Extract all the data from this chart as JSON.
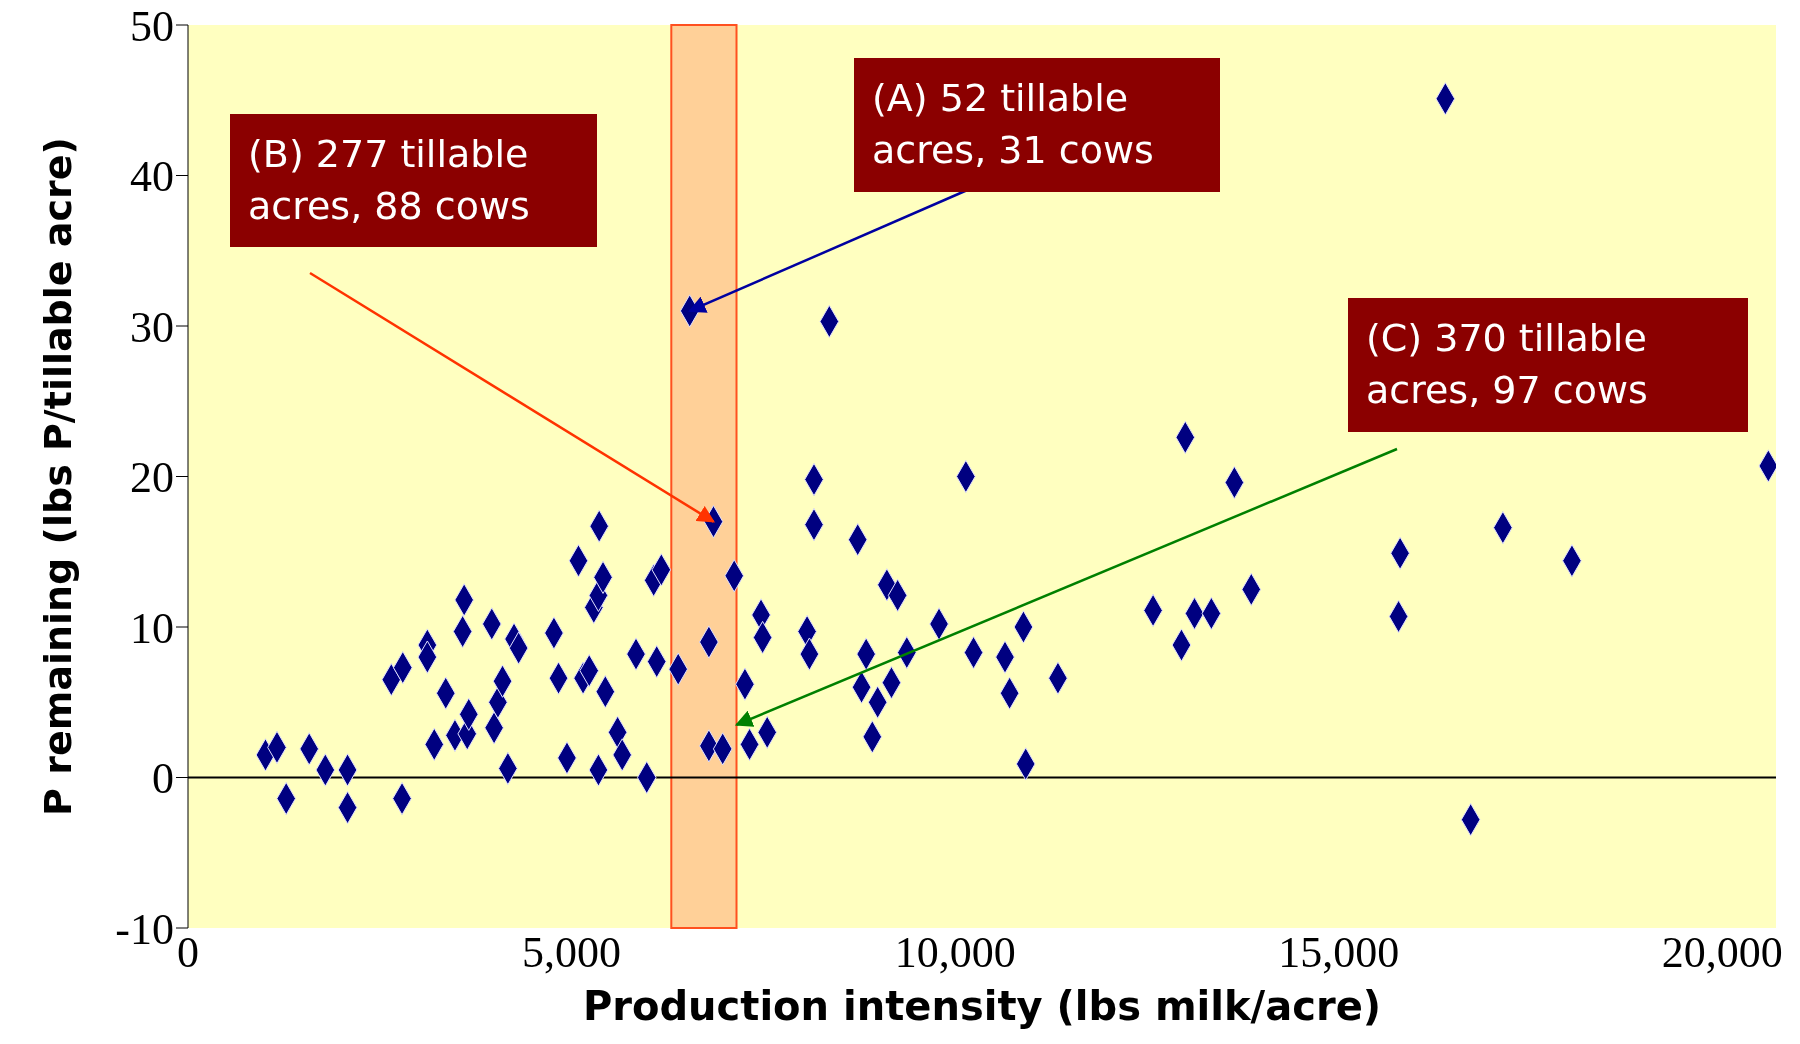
{
  "chart_data": {
    "type": "scatter",
    "xlabel": "Production intensity (lbs milk/acre)",
    "ylabel": "P remaining (lbs P/tillable acre)",
    "x": [
      1010,
      1160,
      1280,
      1580,
      1790,
      2080,
      2080,
      2650,
      2800,
      2790,
      3120,
      3120,
      3210,
      3360,
      3480,
      3600,
      3580,
      3640,
      3660,
      3960,
      3990,
      4040,
      4100,
      4170,
      4250,
      4310,
      4770,
      4830,
      4940,
      5090,
      5150,
      5230,
      5290,
      5350,
      5360,
      5410,
      5440,
      5350,
      5600,
      5660,
      5840,
      5980,
      6070,
      6170,
      6110,
      6390,
      6540,
      6850,
      6790,
      6790,
      6970,
      7120,
      7260,
      7320,
      7470,
      7490,
      7550,
      8070,
      8100,
      8160,
      8160,
      8360,
      8730,
      8780,
      8840,
      8920,
      8990,
      9110,
      9170,
      9250,
      9370,
      9790,
      10140,
      10240,
      10650,
      10710,
      10890,
      10920,
      11340,
      12580,
      12950,
      13000,
      13120,
      13340,
      13640,
      13860,
      15780,
      15800,
      16390,
      16720,
      17140,
      18040,
      20600
    ],
    "series": [
      {
        "color": "#000080",
        "values": [
          1.5,
          2.0,
          -1.4,
          1.9,
          0.5,
          0.5,
          -2.0,
          6.5,
          7.3,
          -1.4,
          8.8,
          8.0,
          2.2,
          5.6,
          2.8,
          11.8,
          9.7,
          2.9,
          4.2,
          10.2,
          3.3,
          5.0,
          6.4,
          0.6,
          9.2,
          8.6,
          9.6,
          6.6,
          1.3,
          14.4,
          6.6,
          7.1,
          11.3,
          12.1,
          16.7,
          13.3,
          5.7,
          0.5,
          3.0,
          1.5,
          8.2,
          0,
          13.1,
          13.8,
          7.7,
          7.2,
          31.0,
          17.0,
          9.0,
          2.1,
          1.9,
          13.4,
          6.2,
          2.2,
          10.8,
          9.3,
          3.0,
          9.7,
          8.2,
          19.8,
          16.8,
          30.3,
          15.8,
          6.0,
          8.2,
          2.7,
          5.0,
          12.8,
          6.3,
          12.1,
          8.3,
          10.2,
          20.0,
          8.3,
          8.0,
          5.6,
          10.0,
          0.9,
          6.6,
          11.1,
          8.8,
          22.6,
          10.9,
          10.9,
          19.6,
          12.5,
          10.7,
          14.9,
          45.1,
          -2.8,
          16.6,
          14.4,
          20.7
        ]
      }
    ],
    "marker": "diamond",
    "xlim": [
      0,
      20700
    ],
    "xticks": [
      0,
      {
        "value": 5000,
        "label": "5,000"
      },
      {
        "value": 10000,
        "label": "10,000"
      },
      {
        "value": 15000,
        "label": "15,000"
      },
      {
        "value": 20000,
        "label": "20,000"
      }
    ],
    "ylim": [
      -10,
      50
    ],
    "yticks": [
      -10,
      0,
      10,
      20,
      30,
      40,
      50
    ],
    "ref_lines": [
      {
        "axis": "y",
        "value": 0,
        "color": "#000000"
      }
    ],
    "bands": [
      {
        "axis": "x",
        "from": 6300,
        "to": 7150,
        "color": "#ffc890"
      }
    ],
    "annotations": [
      {
        "text": "(A) 52 tillable acres, 31 cows",
        "x": 6540,
        "y": 31.0
      },
      {
        "text": "(B) 277 tillable acres, 88 cows",
        "x": 6850,
        "y": 17.0
      },
      {
        "text": "(C) 370 tillable acres, 97 cows",
        "x": 7150,
        "y": 3.5
      }
    ],
    "legend": false
  }
}
